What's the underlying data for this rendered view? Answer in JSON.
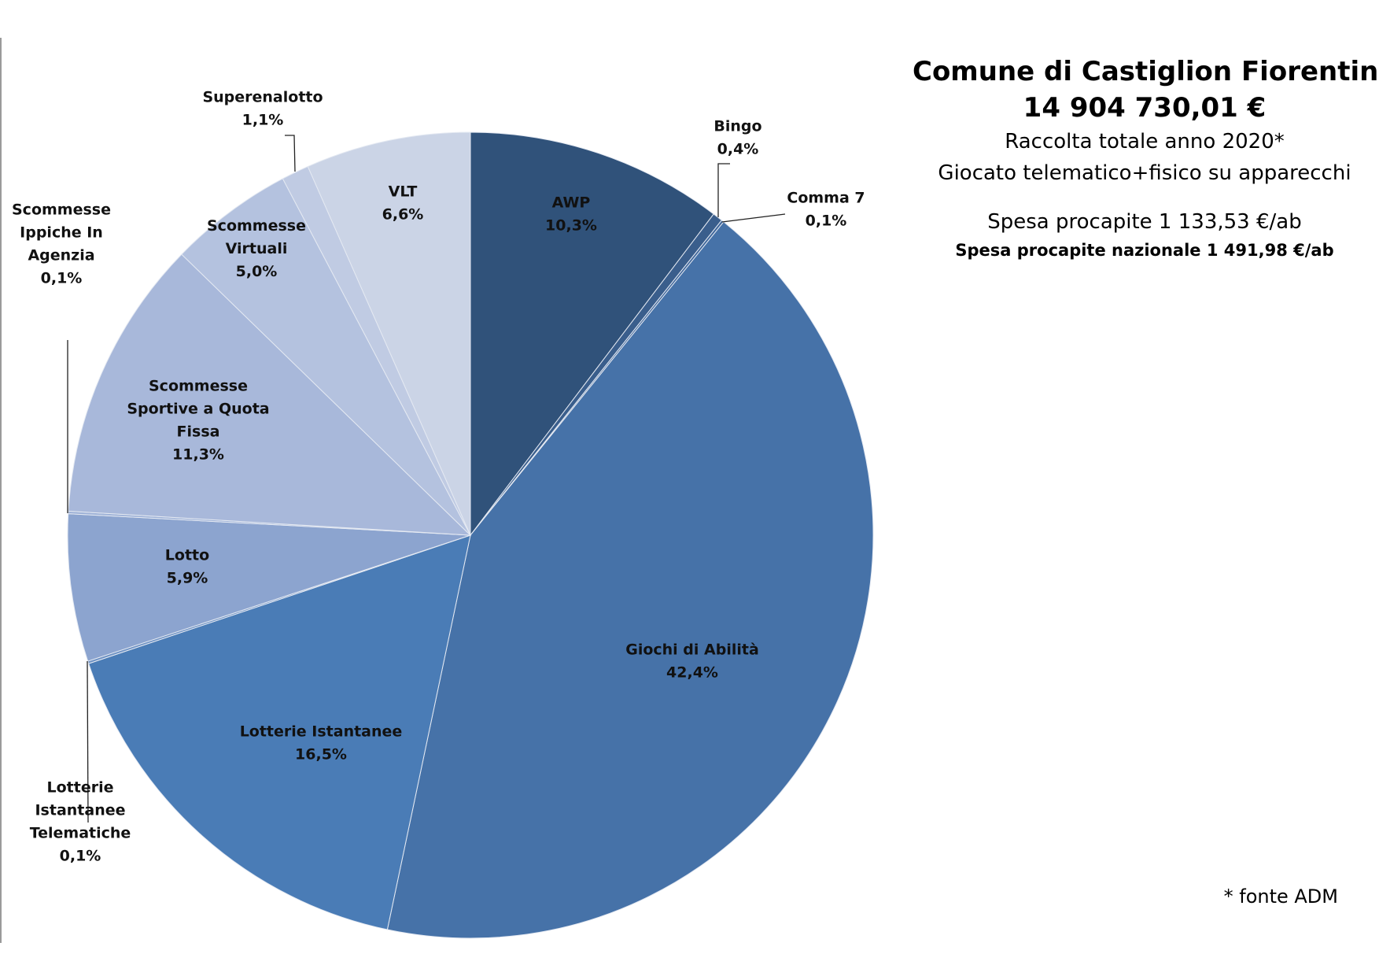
{
  "header": {
    "title": "Comune di Castiglion Fiorentino",
    "total": "14 904 730,01 €",
    "subtitle1": "Raccolta totale anno 2020*",
    "subtitle2": "Giocato telematico+fisico su apparecchi",
    "spesa_procapite": "Spesa procapite  1 133,53 €/ab",
    "spesa_nazionale": "Spesa procapite nazionale  1 491,98 €/ab"
  },
  "footer": {
    "source": "* fonte ADM"
  },
  "chart_data": {
    "type": "pie",
    "title": "Comune di Castiglion Fiorentino",
    "start_angle_deg": 0,
    "direction": "clockwise",
    "slices": [
      {
        "name": "AWP",
        "value": 10.3,
        "label": "10,3%",
        "color": "#30527A"
      },
      {
        "name": "Bingo",
        "value": 0.4,
        "label": "0,4%",
        "color": "#3A5E8C"
      },
      {
        "name": "Comma 7",
        "value": 0.1,
        "label": "0,1%",
        "color": "#3F669A"
      },
      {
        "name": "Giochi di Abilità",
        "value": 42.4,
        "label": "42,4%",
        "color": "#4672A8"
      },
      {
        "name": "Lotterie Istantanee",
        "value": 16.5,
        "label": "16,5%",
        "color": "#4A7CB6"
      },
      {
        "name": "Lotterie Istantanee Telematiche",
        "value": 0.1,
        "label": "0,1%",
        "color": "#6E92C4"
      },
      {
        "name": "Lotto",
        "value": 5.9,
        "label": "5,9%",
        "color": "#8CA4CF"
      },
      {
        "name": "Scommesse Ippiche In Agenzia",
        "value": 0.1,
        "label": "0,1%",
        "color": "#9CB0D6"
      },
      {
        "name": "Scommesse Sportive a Quota Fissa",
        "value": 11.3,
        "label": "11,3%",
        "color": "#A8B8DA"
      },
      {
        "name": "Scommesse Virtuali",
        "value": 5.0,
        "label": "5,0%",
        "color": "#B4C2DF"
      },
      {
        "name": "Superenalotto",
        "value": 1.1,
        "label": "1,1%",
        "color": "#C0CBE3"
      },
      {
        "name": "VLT",
        "value": 6.6,
        "label": "6,6%",
        "color": "#CBD4E6"
      }
    ],
    "legend": "none"
  }
}
